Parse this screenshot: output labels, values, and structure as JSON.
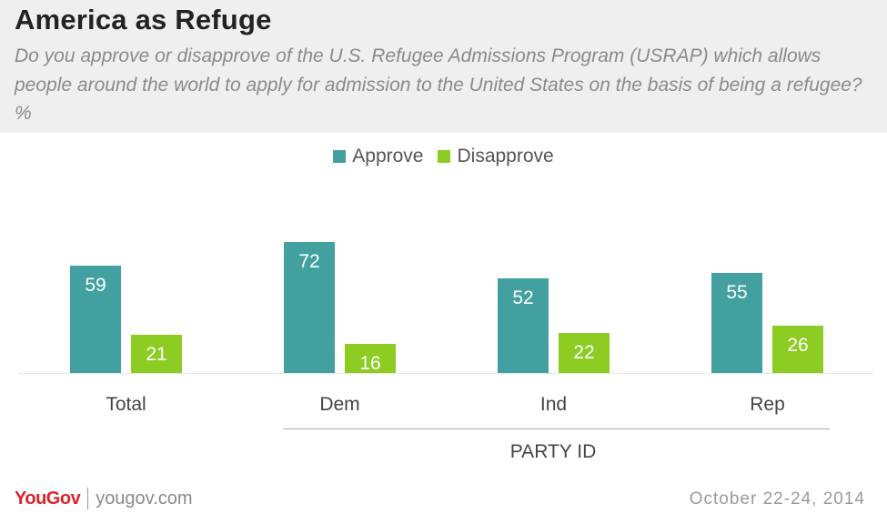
{
  "header": {
    "title": "America as Refuge",
    "subtitle": "Do you approve or disapprove of the U.S. Refugee Admissions Program (USRAP) which allows people around the world to apply for admission to the United States on the basis of being a refugee? %"
  },
  "colors": {
    "approve": "#43a0a0",
    "disapprove": "#8ccc23",
    "header_bg": "#efefef"
  },
  "chart_data": {
    "type": "bar",
    "categories": [
      "Total",
      "Dem",
      "Ind",
      "Rep"
    ],
    "series": [
      {
        "name": "Approve",
        "values": [
          59,
          72,
          52,
          55
        ]
      },
      {
        "name": "Disapprove",
        "values": [
          21,
          16,
          22,
          26
        ]
      }
    ],
    "group_label": "PARTY ID",
    "ylim": [
      0,
      80
    ],
    "grid": false,
    "legend": "top-center"
  },
  "footer": {
    "brand": "YouGov",
    "url": "yougov.com",
    "date": "October 22-24, 2014"
  }
}
